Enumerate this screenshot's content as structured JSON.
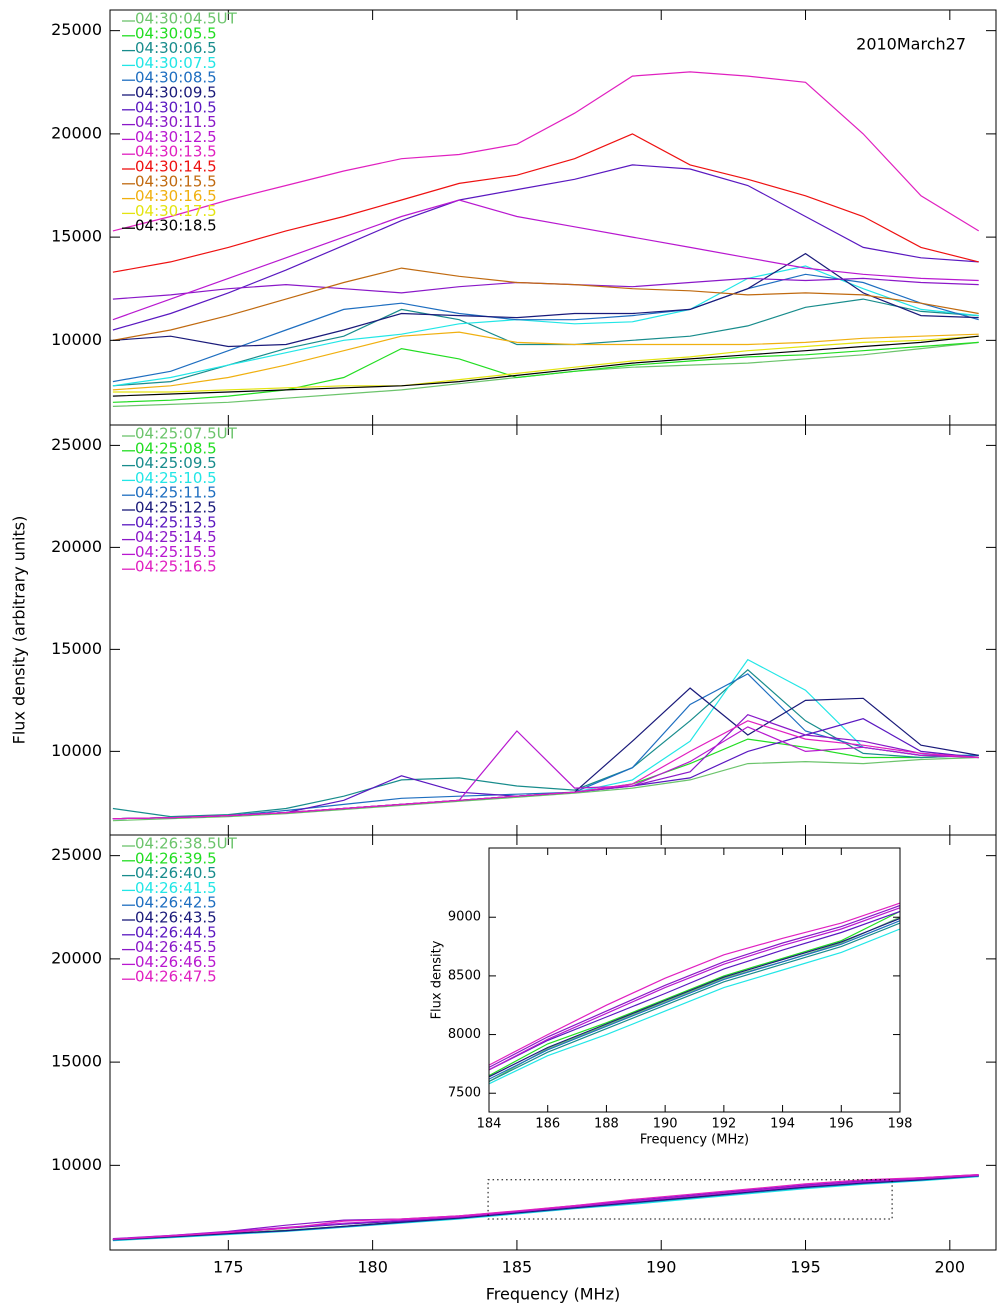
{
  "chart_data": [
    {
      "type": "line",
      "annotation": "2010March27",
      "x": [
        171,
        173,
        175,
        177,
        179,
        181,
        183,
        185,
        187,
        189,
        191,
        193,
        195,
        197,
        199,
        201
      ],
      "xlim": [
        170.9,
        201.6
      ],
      "ylim": [
        5900,
        26000
      ],
      "xticks": [
        175,
        180,
        185,
        190,
        195,
        200
      ],
      "yticks": [
        10000,
        15000,
        20000,
        25000
      ],
      "series": [
        {
          "name": "04:30:04.5UT",
          "color": "#6cc46c",
          "values": [
            6800,
            6900,
            7000,
            7200,
            7400,
            7600,
            7900,
            8200,
            8500,
            8700,
            8800,
            8900,
            9100,
            9300,
            9600,
            9900
          ]
        },
        {
          "name": "04:30:05.5",
          "color": "#22dd22",
          "values": [
            7000,
            7100,
            7300,
            7600,
            8200,
            9600,
            9100,
            8200,
            8500,
            8800,
            9000,
            9200,
            9300,
            9500,
            9700,
            9900
          ]
        },
        {
          "name": "04:30:06.5",
          "color": "#188c8c",
          "values": [
            7800,
            8000,
            8800,
            9600,
            10200,
            11500,
            11000,
            9800,
            9800,
            10000,
            10200,
            10700,
            11600,
            12000,
            11400,
            11200
          ]
        },
        {
          "name": "04:30:07.5",
          "color": "#22e6e6",
          "values": [
            7800,
            8200,
            8800,
            9400,
            10000,
            10300,
            10800,
            11000,
            10800,
            10900,
            11500,
            13000,
            13600,
            12500,
            11500,
            11200
          ]
        },
        {
          "name": "04:30:08.5",
          "color": "#1e6ec0",
          "values": [
            8000,
            8500,
            9500,
            10500,
            11500,
            11800,
            11300,
            11000,
            11000,
            11200,
            11500,
            12500,
            13200,
            12800,
            11800,
            11000
          ]
        },
        {
          "name": "04:30:09.5",
          "color": "#1a1a7a",
          "values": [
            10000,
            10200,
            9700,
            9800,
            10500,
            11300,
            11200,
            11100,
            11300,
            11300,
            11500,
            12500,
            14200,
            12300,
            11200,
            11100
          ]
        },
        {
          "name": "04:30:10.5",
          "color": "#5a18c0",
          "values": [
            10500,
            11300,
            12300,
            13400,
            14600,
            15800,
            16800,
            17300,
            17800,
            18500,
            18300,
            17500,
            16000,
            14500,
            14000,
            13800
          ]
        },
        {
          "name": "04:30:11.5",
          "color": "#8a18c8",
          "values": [
            12000,
            12200,
            12500,
            12700,
            12500,
            12300,
            12600,
            12800,
            12700,
            12600,
            12800,
            13000,
            12900,
            13000,
            12800,
            12700
          ]
        },
        {
          "name": "04:30:12.5",
          "color": "#b818d0",
          "values": [
            11000,
            12000,
            13000,
            14000,
            15000,
            16000,
            16800,
            16000,
            15500,
            15000,
            14500,
            14000,
            13500,
            13200,
            13000,
            12900
          ]
        },
        {
          "name": "04:30:13.5",
          "color": "#e020c0",
          "values": [
            15300,
            16000,
            16800,
            17500,
            18200,
            18800,
            19000,
            19500,
            21000,
            22800,
            23000,
            22800,
            22500,
            20000,
            17000,
            15300
          ]
        },
        {
          "name": "04:30:14.5",
          "color": "#ee1111",
          "values": [
            13300,
            13800,
            14500,
            15300,
            16000,
            16800,
            17600,
            18000,
            18800,
            20000,
            18500,
            17800,
            17000,
            16000,
            14500,
            13800
          ]
        },
        {
          "name": "04:30:15.5",
          "color": "#c06a10",
          "values": [
            10000,
            10500,
            11200,
            12000,
            12800,
            13500,
            13100,
            12800,
            12700,
            12500,
            12400,
            12200,
            12300,
            12200,
            11800,
            11300
          ]
        },
        {
          "name": "04:30:16.5",
          "color": "#f0b010",
          "values": [
            7600,
            7800,
            8200,
            8800,
            9500,
            10200,
            10400,
            9900,
            9800,
            9800,
            9800,
            9800,
            9900,
            10100,
            10200,
            10300
          ]
        },
        {
          "name": "04:30:17.5",
          "color": "#e4e410",
          "values": [
            7500,
            7500,
            7600,
            7700,
            7800,
            7800,
            8100,
            8400,
            8700,
            9000,
            9200,
            9500,
            9700,
            9900,
            10000,
            10200
          ]
        },
        {
          "name": "04:30:18.5",
          "color": "#000000",
          "values": [
            7300,
            7400,
            7500,
            7600,
            7700,
            7800,
            8000,
            8300,
            8600,
            8900,
            9100,
            9300,
            9500,
            9700,
            9900,
            10200
          ]
        }
      ]
    },
    {
      "type": "line",
      "ylabel": "Flux density (arbitrary units)",
      "x": [
        171,
        173,
        175,
        177,
        179,
        181,
        183,
        185,
        187,
        189,
        191,
        193,
        195,
        197,
        199,
        201
      ],
      "xlim": [
        170.9,
        201.6
      ],
      "ylim": [
        5900,
        26000
      ],
      "xticks": [
        175,
        180,
        185,
        190,
        195,
        200
      ],
      "yticks": [
        10000,
        15000,
        20000,
        25000
      ],
      "series": [
        {
          "name": "04:25:07.5UT",
          "color": "#6cc46c",
          "values": [
            6600,
            6700,
            6800,
            6950,
            7150,
            7350,
            7550,
            7750,
            7950,
            8200,
            8600,
            9400,
            9500,
            9400,
            9600,
            9700
          ]
        },
        {
          "name": "04:25:08.5",
          "color": "#22dd22",
          "values": [
            6700,
            6750,
            6850,
            7000,
            7200,
            7400,
            7600,
            7800,
            8000,
            8400,
            9400,
            10600,
            10200,
            9700,
            9700,
            9800
          ]
        },
        {
          "name": "04:25:09.5",
          "color": "#188c8c",
          "values": [
            7200,
            6800,
            6900,
            7200,
            7800,
            8600,
            8700,
            8300,
            8100,
            9200,
            11500,
            14000,
            11500,
            9900,
            9700,
            9800
          ]
        },
        {
          "name": "04:25:10.5",
          "color": "#22e6e6",
          "values": [
            6700,
            6750,
            6850,
            7000,
            7200,
            7400,
            7600,
            7800,
            8000,
            8600,
            10500,
            14500,
            13000,
            10200,
            9800,
            9800
          ]
        },
        {
          "name": "04:25:11.5",
          "color": "#1e6ec0",
          "values": [
            6700,
            6750,
            6850,
            7100,
            7400,
            7700,
            7800,
            7900,
            8000,
            9200,
            12300,
            13800,
            11000,
            10200,
            9800,
            9800
          ]
        },
        {
          "name": "04:25:12.5",
          "color": "#1a1a7a",
          "values": [
            6700,
            6750,
            6850,
            7000,
            7200,
            7400,
            7600,
            7800,
            8000,
            10500,
            13100,
            10800,
            12500,
            12600,
            10300,
            9800
          ]
        },
        {
          "name": "04:25:13.5",
          "color": "#5a18c0",
          "values": [
            6700,
            6750,
            6850,
            7000,
            7600,
            8800,
            8000,
            7800,
            8000,
            8300,
            8700,
            10000,
            10800,
            11600,
            10000,
            9700
          ]
        },
        {
          "name": "04:25:14.5",
          "color": "#8a18c8",
          "values": [
            6700,
            6750,
            6850,
            7000,
            7200,
            7400,
            7600,
            7800,
            8000,
            8300,
            9000,
            11800,
            10800,
            10500,
            9900,
            9700
          ]
        },
        {
          "name": "04:25:15.5",
          "color": "#b818d0",
          "values": [
            6700,
            6750,
            6850,
            7000,
            7200,
            7400,
            7600,
            11000,
            8200,
            8300,
            9500,
            11200,
            10000,
            10200,
            9800,
            9700
          ]
        },
        {
          "name": "04:25:16.5",
          "color": "#e020c0",
          "values": [
            6700,
            6750,
            6850,
            7000,
            7200,
            7400,
            7600,
            7800,
            8000,
            8400,
            10000,
            11500,
            10600,
            10300,
            9900,
            9700
          ]
        }
      ]
    },
    {
      "type": "line",
      "xlabel": "Frequency (MHz)",
      "x": [
        171,
        173,
        175,
        177,
        179,
        181,
        183,
        185,
        187,
        189,
        191,
        193,
        195,
        197,
        199,
        201
      ],
      "xlim": [
        170.9,
        201.6
      ],
      "ylim": [
        5900,
        26000
      ],
      "xticks": [
        175,
        180,
        185,
        190,
        195,
        200
      ],
      "yticks": [
        10000,
        15000,
        20000,
        25000
      ],
      "inset_box": {
        "xlim": [
          184,
          198
        ],
        "ylim": [
          7400,
          9300
        ]
      },
      "series": [
        {
          "name": "04:26:38.5UT",
          "color": "#6cc46c",
          "values": [
            6400,
            6550,
            6700,
            6850,
            7050,
            7250,
            7450,
            7700,
            7950,
            8200,
            8450,
            8700,
            8950,
            9200,
            9350,
            9500
          ]
        },
        {
          "name": "04:26:39.5",
          "color": "#22dd22",
          "values": [
            6400,
            6550,
            6700,
            6850,
            7050,
            7250,
            7450,
            7700,
            7950,
            8200,
            8450,
            8750,
            8950,
            9150,
            9300,
            9500
          ]
        },
        {
          "name": "04:26:40.5",
          "color": "#188c8c",
          "values": [
            6380,
            6530,
            6680,
            6830,
            7030,
            7230,
            7430,
            7680,
            7930,
            8180,
            8420,
            8680,
            8930,
            9130,
            9280,
            9480
          ]
        },
        {
          "name": "04:26:41.5",
          "color": "#22e6e6",
          "values": [
            6350,
            6500,
            6650,
            6800,
            7000,
            7200,
            7400,
            7650,
            7900,
            8120,
            8370,
            8620,
            8870,
            9080,
            9250,
            9450
          ]
        },
        {
          "name": "04:26:42.5",
          "color": "#1e6ec0",
          "values": [
            6380,
            6520,
            6680,
            6820,
            7020,
            7230,
            7430,
            7680,
            7920,
            8170,
            8420,
            8670,
            8920,
            9120,
            9280,
            9480
          ]
        },
        {
          "name": "04:26:43.5",
          "color": "#1a1a7a",
          "values": [
            6400,
            6540,
            6700,
            6840,
            7050,
            7250,
            7450,
            7700,
            7950,
            8200,
            8440,
            8700,
            8950,
            9150,
            9300,
            9500
          ]
        },
        {
          "name": "04:26:44.5",
          "color": "#5a18c0",
          "values": [
            6420,
            6580,
            6750,
            6950,
            7150,
            7300,
            7500,
            7750,
            8000,
            8250,
            8500,
            8750,
            9000,
            9200,
            9350,
            9500
          ]
        },
        {
          "name": "04:26:45.5",
          "color": "#8a18c8",
          "values": [
            6450,
            6600,
            6800,
            7100,
            7350,
            7400,
            7550,
            7780,
            8050,
            8300,
            8550,
            8800,
            9050,
            9250,
            9400,
            9550
          ]
        },
        {
          "name": "04:26:46.5",
          "color": "#b818d0",
          "values": [
            6430,
            6600,
            6780,
            7000,
            7200,
            7350,
            7500,
            7750,
            8000,
            8250,
            8500,
            8750,
            9000,
            9200,
            9350,
            9520
          ]
        },
        {
          "name": "04:26:47.5",
          "color": "#e020c0",
          "values": [
            6420,
            6580,
            6750,
            6950,
            7300,
            7400,
            7550,
            7800,
            8050,
            8350,
            8600,
            8850,
            9100,
            9300,
            9400,
            9550
          ]
        }
      ]
    },
    {
      "type": "line",
      "xlabel": "Frequency (MHz)",
      "ylabel": "Flux density",
      "x": [
        184,
        186,
        188,
        190,
        192,
        194,
        196,
        198
      ],
      "xlim": [
        184,
        198
      ],
      "ylim": [
        7340,
        9590
      ],
      "xticks": [
        184,
        186,
        188,
        190,
        192,
        194,
        196,
        198
      ],
      "yticks": [
        7500,
        8000,
        8500,
        9000
      ],
      "series": [
        {
          "color": "#6cc46c",
          "values": [
            7600,
            7880,
            8080,
            8280,
            8480,
            8620,
            8780,
            9000
          ]
        },
        {
          "color": "#22dd22",
          "values": [
            7650,
            7920,
            8100,
            8300,
            8500,
            8650,
            8800,
            9050
          ]
        },
        {
          "color": "#188c8c",
          "values": [
            7600,
            7850,
            8050,
            8250,
            8450,
            8600,
            8750,
            8950
          ]
        },
        {
          "color": "#22e6e6",
          "values": [
            7580,
            7820,
            8000,
            8200,
            8400,
            8550,
            8700,
            8900
          ]
        },
        {
          "color": "#1e6ec0",
          "values": [
            7620,
            7870,
            8070,
            8270,
            8470,
            8620,
            8770,
            8970
          ]
        },
        {
          "color": "#1a1a7a",
          "values": [
            7640,
            7890,
            8090,
            8290,
            8490,
            8640,
            8790,
            8990
          ]
        },
        {
          "color": "#5a18c0",
          "values": [
            7700,
            7950,
            8150,
            8350,
            8560,
            8720,
            8870,
            9050
          ]
        },
        {
          "color": "#8a18c8",
          "values": [
            7720,
            7980,
            8200,
            8420,
            8620,
            8780,
            8920,
            9100
          ]
        },
        {
          "color": "#b818d0",
          "values": [
            7700,
            7960,
            8180,
            8400,
            8600,
            8760,
            8900,
            9080
          ]
        },
        {
          "color": "#e020c0",
          "values": [
            7740,
            8000,
            8250,
            8480,
            8680,
            8820,
            8950,
            9120
          ]
        }
      ]
    }
  ]
}
